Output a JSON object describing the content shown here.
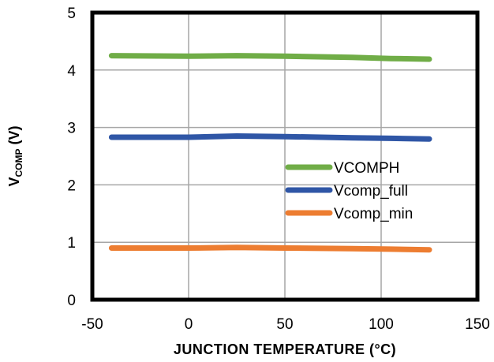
{
  "chart_data": {
    "type": "line",
    "title": "",
    "xlabel": "JUNCTION  TEMPERATURE  (°C)",
    "ylabel": {
      "main": "V",
      "sub": "COMP",
      "unit": " (V)"
    },
    "xlim": [
      -50,
      150
    ],
    "ylim": [
      0,
      5
    ],
    "xticks": [
      -50,
      0,
      50,
      100,
      150
    ],
    "yticks": [
      0,
      1,
      2,
      3,
      4,
      5
    ],
    "grid": true,
    "legend_position": "center-right",
    "series": [
      {
        "name": "VCOMPH",
        "color": "#70ad47",
        "x": [
          -40,
          0,
          25,
          50,
          85,
          105,
          125
        ],
        "y": [
          4.25,
          4.24,
          4.25,
          4.24,
          4.22,
          4.2,
          4.19
        ]
      },
      {
        "name": "Vcomp_full",
        "color": "#2f56a6",
        "x": [
          -40,
          0,
          25,
          50,
          85,
          105,
          125
        ],
        "y": [
          2.83,
          2.83,
          2.85,
          2.84,
          2.82,
          2.81,
          2.8
        ]
      },
      {
        "name": "Vcomp_min",
        "color": "#ed7d31",
        "x": [
          -40,
          0,
          25,
          50,
          85,
          105,
          125
        ],
        "y": [
          0.9,
          0.9,
          0.91,
          0.9,
          0.89,
          0.88,
          0.87
        ]
      }
    ]
  }
}
